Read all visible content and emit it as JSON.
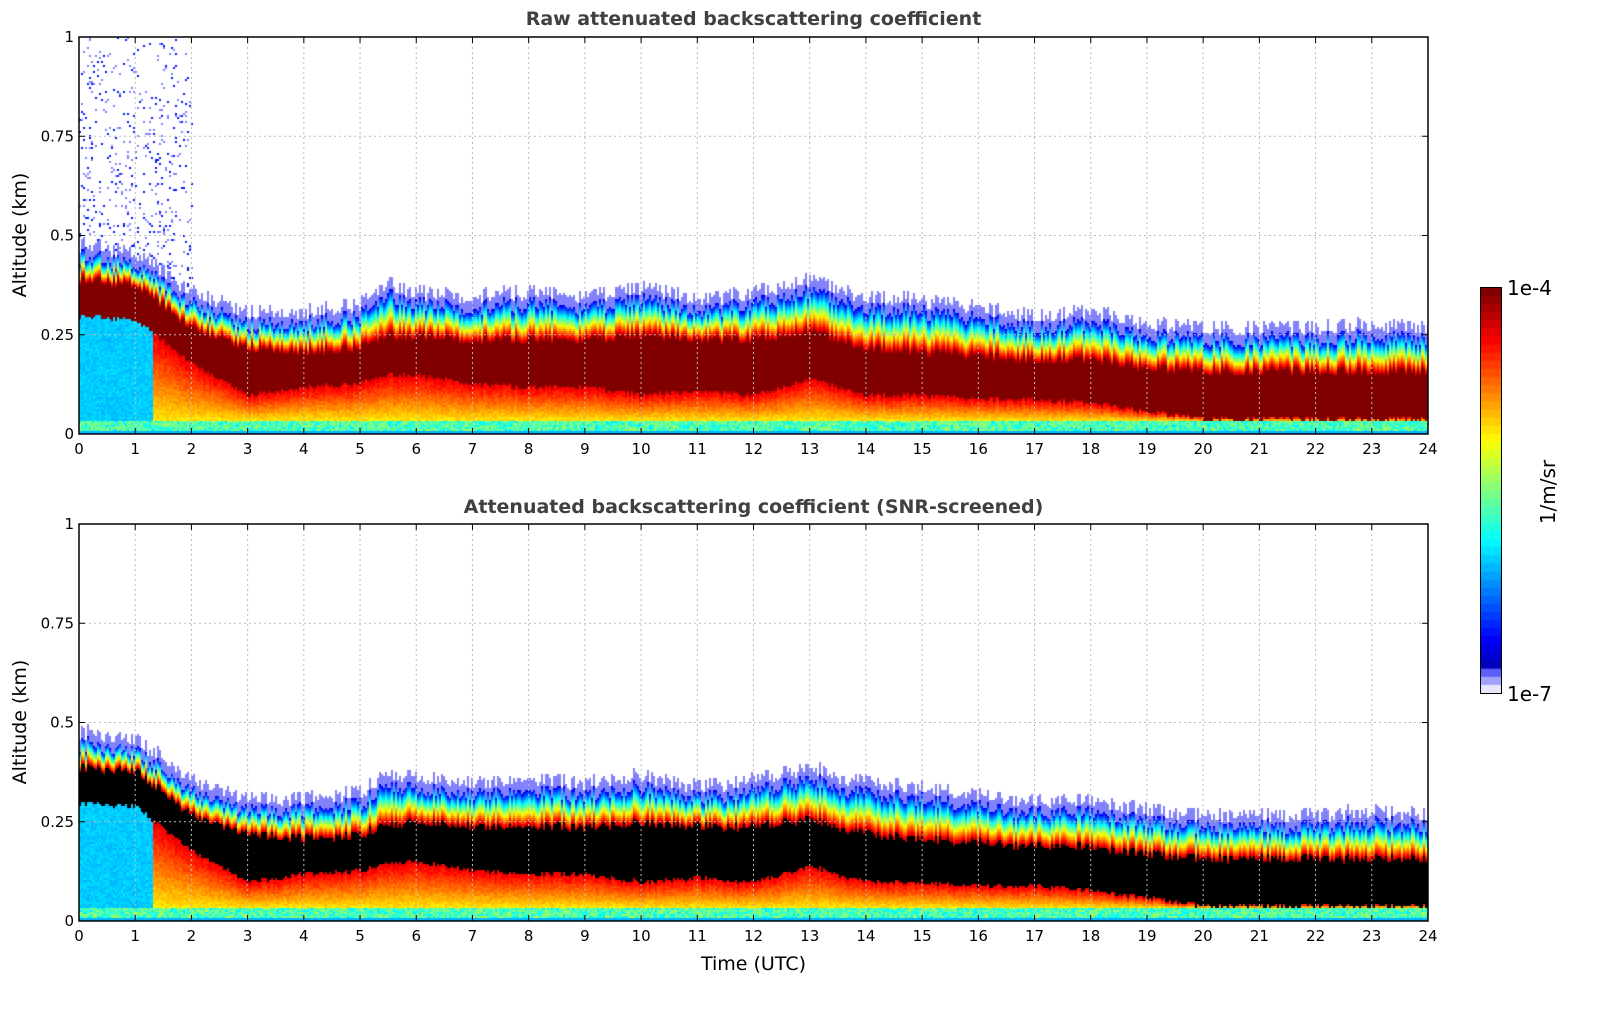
{
  "chart_data": [
    {
      "type": "heatmap",
      "title": "Raw attenuated backscattering coefficient",
      "xlabel": "",
      "ylabel": "Altitude (km)",
      "xlim": [
        0,
        24
      ],
      "ylim": [
        0,
        1
      ],
      "xticks": [
        "0",
        "1",
        "2",
        "3",
        "4",
        "5",
        "6",
        "7",
        "8",
        "9",
        "10",
        "11",
        "12",
        "13",
        "14",
        "15",
        "16",
        "17",
        "18",
        "19",
        "20",
        "21",
        "22",
        "23",
        "24"
      ],
      "yticks": [
        "0",
        "0.25",
        "0.5",
        "0.75",
        "1"
      ],
      "grid": true,
      "saturated_color": "#800000"
    },
    {
      "type": "heatmap",
      "title": "Attenuated backscattering coefficient (SNR-screened)",
      "xlabel": "Time (UTC)",
      "ylabel": "Altitude (km)",
      "xlim": [
        0,
        24
      ],
      "ylim": [
        0,
        1
      ],
      "xticks": [
        "0",
        "1",
        "2",
        "3",
        "4",
        "5",
        "6",
        "7",
        "8",
        "9",
        "10",
        "11",
        "12",
        "13",
        "14",
        "15",
        "16",
        "17",
        "18",
        "19",
        "20",
        "21",
        "22",
        "23",
        "24"
      ],
      "yticks": [
        "0",
        "0.25",
        "0.5",
        "0.75",
        "1"
      ],
      "grid": true,
      "saturated_color": "#000000"
    }
  ],
  "layer_profile": {
    "hours": [
      0,
      1,
      2,
      3,
      4,
      5,
      5.5,
      6,
      7,
      8,
      9,
      10,
      11,
      12,
      13,
      14,
      15,
      16,
      17,
      18,
      19,
      20,
      21,
      22,
      23,
      24
    ],
    "layer_top_km": [
      0.45,
      0.43,
      0.33,
      0.28,
      0.28,
      0.3,
      0.35,
      0.33,
      0.32,
      0.33,
      0.32,
      0.34,
      0.31,
      0.33,
      0.36,
      0.32,
      0.31,
      0.29,
      0.27,
      0.28,
      0.25,
      0.24,
      0.24,
      0.24,
      0.25,
      0.24
    ],
    "dense_top_km": [
      0.39,
      0.38,
      0.27,
      0.22,
      0.21,
      0.22,
      0.25,
      0.25,
      0.24,
      0.24,
      0.24,
      0.25,
      0.24,
      0.24,
      0.26,
      0.22,
      0.21,
      0.2,
      0.19,
      0.19,
      0.17,
      0.16,
      0.16,
      0.16,
      0.16,
      0.16
    ],
    "dense_bottom_km": [
      0.3,
      0.29,
      0.18,
      0.1,
      0.12,
      0.13,
      0.15,
      0.15,
      0.13,
      0.12,
      0.12,
      0.1,
      0.11,
      0.1,
      0.14,
      0.1,
      0.1,
      0.09,
      0.09,
      0.08,
      0.06,
      0.04,
      0.04,
      0.04,
      0.04,
      0.04
    ]
  },
  "colorbar": {
    "label": "1/m/sr",
    "max_label": "1e-4",
    "min_label": "1e-7",
    "min": 1e-07,
    "max": 0.0001,
    "scale": "log"
  }
}
